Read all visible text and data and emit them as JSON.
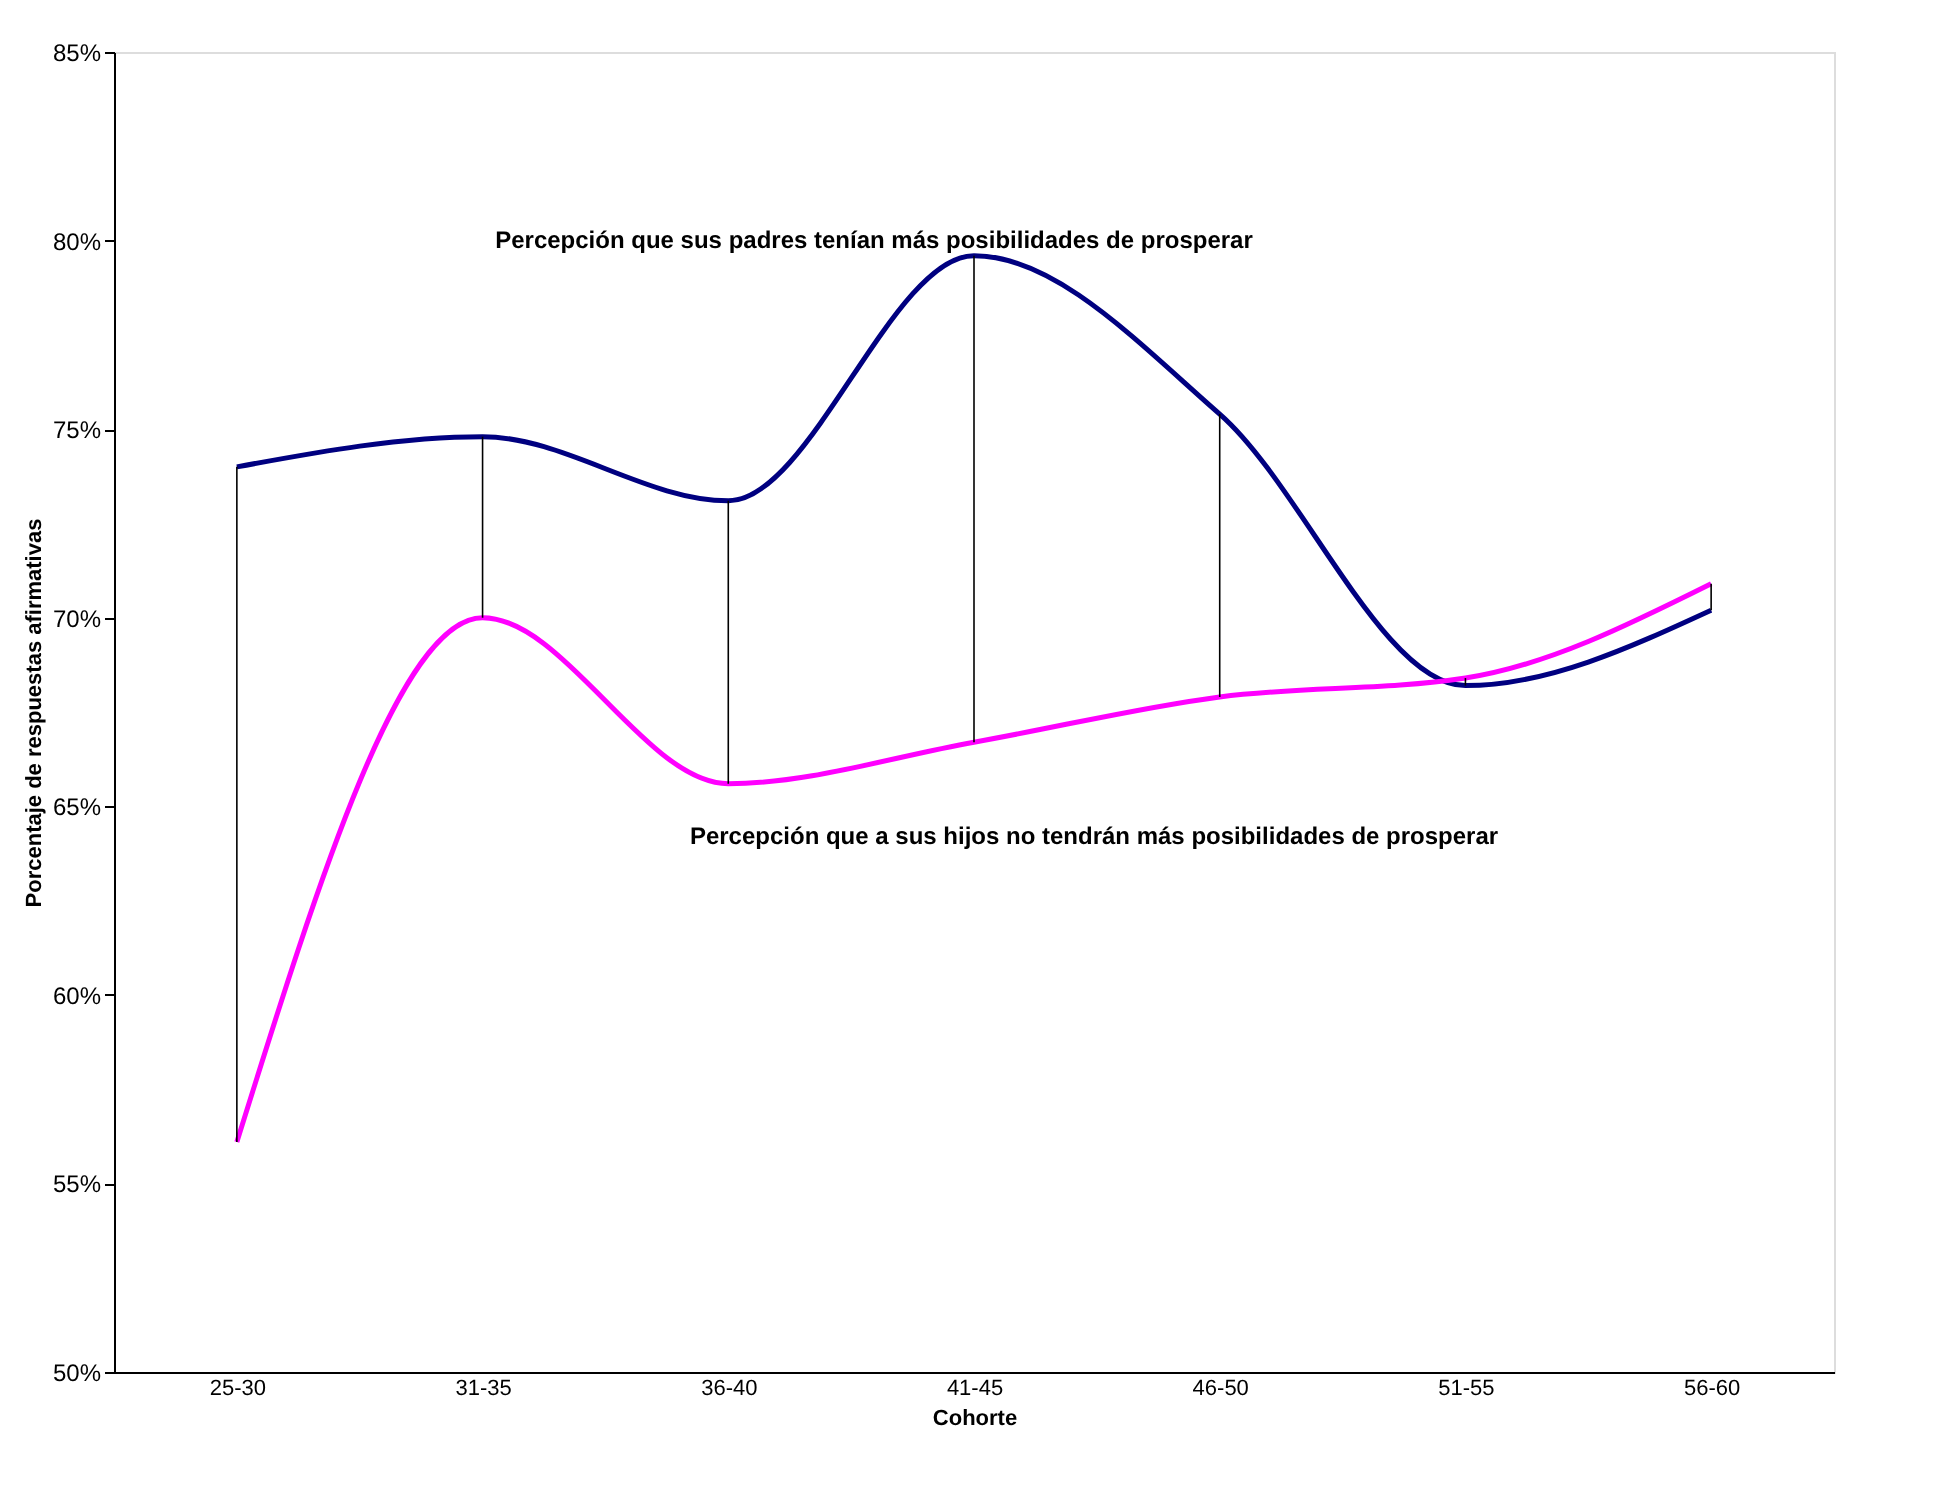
{
  "chart_data": {
    "type": "line",
    "xlabel": "Cohorte",
    "ylabel": "Porcentaje de respuestas afirmativas",
    "categories": [
      "25-30",
      "31-35",
      "36-40",
      "41-45",
      "46-50",
      "51-55",
      "56-60"
    ],
    "series": [
      {
        "name": "Percepción que sus padres tenían más posibilidades de prosperar",
        "color": "#000080",
        "values": [
          74.0,
          74.8,
          73.1,
          79.6,
          75.4,
          68.2,
          70.2
        ],
        "errors": [
          [
            56.1,
            74.0
          ],
          [
            70.0,
            74.8
          ],
          [
            65.6,
            73.1
          ],
          [
            66.7,
            79.6
          ],
          [
            67.9,
            75.4
          ],
          [
            68.2,
            68.4
          ],
          [
            70.2,
            70.9
          ]
        ]
      },
      {
        "name": "Percepción que a sus hijos no  tendrán más posibilidades de prosperar",
        "color": "#ff00ff",
        "values": [
          56.1,
          70.0,
          65.6,
          66.7,
          67.9,
          68.4,
          70.9
        ]
      }
    ],
    "ylim": [
      50,
      85
    ],
    "yticks": [
      {
        "value": 50,
        "label": "50%"
      },
      {
        "value": 55,
        "label": "55%"
      },
      {
        "value": 60,
        "label": "60%"
      },
      {
        "value": 65,
        "label": "65%"
      },
      {
        "value": 70,
        "label": "70%"
      },
      {
        "value": 75,
        "label": "75%"
      },
      {
        "value": 80,
        "label": "80%"
      },
      {
        "value": 85,
        "label": "85%"
      }
    ],
    "grid": false,
    "legend": false,
    "marker": "none",
    "line_style": "solid"
  }
}
